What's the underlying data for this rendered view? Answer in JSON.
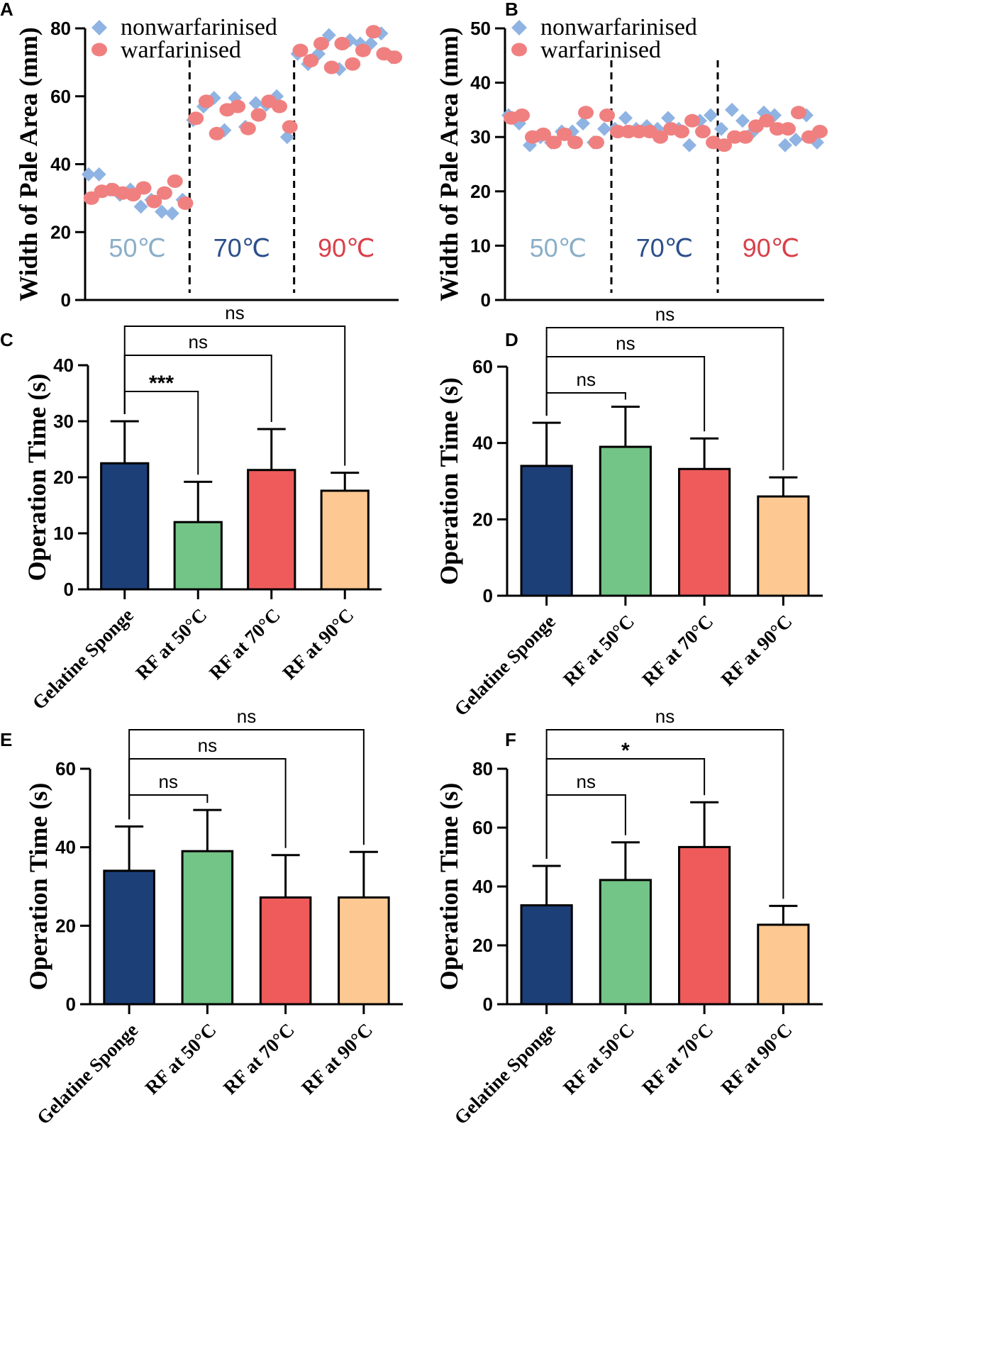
{
  "colors": {
    "nonwarfarinised": "#8fb4e3",
    "warfarinised": "#f08080",
    "temp_50": "#8aaec8",
    "temp_70": "#2c4f8c",
    "temp_90": "#d9404a",
    "bars": [
      "#1c3f78",
      "#73c487",
      "#ef5b5b",
      "#fdc891"
    ]
  },
  "chart_data": [
    {
      "panel": "A",
      "type": "scatter",
      "ylabel": "Width of Pale Area (mm)",
      "ylim": [
        0,
        80
      ],
      "yticks": [
        "0",
        "20",
        "40",
        "60",
        "80"
      ],
      "xrange": [
        0,
        45
      ],
      "legend": [
        "nonwarfarinised",
        "warfarinised"
      ],
      "section_labels": [
        "50℃",
        "70℃",
        "90℃"
      ],
      "dividers_x": [
        15,
        30
      ],
      "series": [
        {
          "name": "nonwarfarinised",
          "marker": "diamond",
          "x": [
            0.5,
            2,
            3.5,
            5,
            6.5,
            8,
            9.5,
            11,
            12.5,
            14,
            15.5,
            17,
            18.5,
            20,
            21.5,
            23,
            24.5,
            26,
            27.5,
            29,
            30.5,
            32,
            33.5,
            35,
            36.5,
            38,
            39.5,
            41,
            42.5,
            44
          ],
          "y": [
            37,
            37,
            32.5,
            31,
            32.5,
            27.5,
            29.5,
            26,
            25.5,
            29.5,
            53,
            57,
            59.5,
            50,
            59.5,
            51,
            58,
            57.5,
            60,
            48,
            72.5,
            69.5,
            72.5,
            78,
            68,
            76.5,
            75.5,
            75.5,
            78.5,
            71.5
          ]
        },
        {
          "name": "warfarinised",
          "marker": "circle",
          "x": [
            0.9,
            2.4,
            3.9,
            5.4,
            6.9,
            8.4,
            9.9,
            11.4,
            12.9,
            14.4,
            15.9,
            17.4,
            18.9,
            20.4,
            21.9,
            23.4,
            24.9,
            26.4,
            27.9,
            29.4,
            30.9,
            32.4,
            33.9,
            35.4,
            36.9,
            38.4,
            39.9,
            41.4,
            42.9,
            44.4
          ],
          "y": [
            30,
            32,
            32.5,
            31.5,
            31,
            33,
            29,
            31.5,
            35,
            28.5,
            53.5,
            58.5,
            49,
            56,
            57,
            50.5,
            54.5,
            58.5,
            57,
            51,
            73.5,
            70.5,
            75.5,
            68.5,
            75.5,
            69.5,
            73.5,
            79,
            72.5,
            71.5
          ]
        }
      ]
    },
    {
      "panel": "B",
      "type": "scatter",
      "ylabel": "Width of Pale Area (mm)",
      "ylim": [
        0,
        50
      ],
      "yticks": [
        "0",
        "10",
        "20",
        "30",
        "40",
        "50"
      ],
      "xrange": [
        0,
        45
      ],
      "legend": [
        "nonwarfarinised",
        "warfarinised"
      ],
      "section_labels": [
        "50℃",
        "70℃",
        "90℃"
      ],
      "dividers_x": [
        15,
        30
      ],
      "series": [
        {
          "name": "nonwarfarinised",
          "marker": "diamond",
          "x": [
            0.5,
            2,
            3.5,
            5,
            6.5,
            8,
            9.5,
            11,
            12.5,
            14,
            15.5,
            17,
            18.5,
            20,
            21.5,
            23,
            24.5,
            26,
            27.5,
            29,
            30.5,
            32,
            33.5,
            35,
            36.5,
            38,
            39.5,
            41,
            42.5,
            44
          ],
          "y": [
            34,
            32.5,
            28.5,
            30,
            29,
            31,
            31,
            32.5,
            29,
            31.5,
            31.5,
            33.5,
            31.5,
            32,
            31.5,
            33.5,
            31.5,
            28.5,
            33,
            34,
            31.5,
            35,
            33,
            31,
            34.5,
            34,
            28.5,
            29.5,
            34,
            29
          ]
        },
        {
          "name": "warfarinised",
          "marker": "circle",
          "x": [
            0.9,
            2.4,
            3.9,
            5.4,
            6.9,
            8.4,
            9.9,
            11.4,
            12.9,
            14.4,
            15.9,
            17.4,
            18.9,
            20.4,
            21.9,
            23.4,
            24.9,
            26.4,
            27.9,
            29.4,
            30.9,
            32.4,
            33.9,
            35.4,
            36.9,
            38.4,
            39.9,
            41.4,
            42.9,
            44.4
          ],
          "y": [
            33.5,
            34,
            30,
            30.5,
            29,
            30.5,
            29,
            34.5,
            29,
            34,
            31,
            31,
            31,
            31,
            30,
            31.5,
            31,
            33,
            31,
            29,
            28.5,
            30,
            30,
            32,
            33,
            31.5,
            31.5,
            34.5,
            30,
            31
          ]
        }
      ]
    },
    {
      "panel": "C",
      "type": "bar",
      "ylabel": "Operation Time (s)",
      "ylim": [
        0,
        40
      ],
      "yticks": [
        "0",
        "10",
        "20",
        "30",
        "40"
      ],
      "categories": [
        "Gelatine Sponge",
        "RF at 50°C",
        "RF at 70°C",
        "RF at 90°C"
      ],
      "values": [
        22.5,
        12,
        21.3,
        17.6
      ],
      "errors": [
        7.5,
        7.2,
        7.3,
        3.2
      ],
      "brackets": [
        {
          "from": 0,
          "to": 1,
          "label": "***"
        },
        {
          "from": 0,
          "to": 2,
          "label": "ns"
        },
        {
          "from": 0,
          "to": 3,
          "label": "ns"
        }
      ]
    },
    {
      "panel": "D",
      "type": "bar",
      "ylabel": "Operation Time (s)",
      "ylim": [
        0,
        60
      ],
      "yticks": [
        "0",
        "20",
        "40",
        "60"
      ],
      "categories": [
        "Gelatine Sponge",
        "RF at 50°C",
        "RF at 70°C",
        "RF at 90°C"
      ],
      "values": [
        34,
        39,
        33.2,
        26
      ],
      "errors": [
        11.3,
        10.5,
        8,
        5
      ],
      "brackets": [
        {
          "from": 0,
          "to": 1,
          "label": "ns"
        },
        {
          "from": 0,
          "to": 2,
          "label": "ns"
        },
        {
          "from": 0,
          "to": 3,
          "label": "ns"
        }
      ]
    },
    {
      "panel": "E",
      "type": "bar",
      "ylabel": "Operation Time (s)",
      "ylim": [
        0,
        60
      ],
      "yticks": [
        "0",
        "20",
        "40",
        "60"
      ],
      "categories": [
        "Gelatine Sponge",
        "RF at 50°C",
        "RF at 70°C",
        "RF at 90°C"
      ],
      "values": [
        34,
        39,
        27.2,
        27.2
      ],
      "errors": [
        11.3,
        10.5,
        10.8,
        11.6
      ],
      "brackets": [
        {
          "from": 0,
          "to": 1,
          "label": "ns"
        },
        {
          "from": 0,
          "to": 2,
          "label": "ns"
        },
        {
          "from": 0,
          "to": 3,
          "label": "ns"
        }
      ]
    },
    {
      "panel": "F",
      "type": "bar",
      "ylabel": "Operation Time (s)",
      "ylim": [
        0,
        80
      ],
      "yticks": [
        "0",
        "20",
        "40",
        "60",
        "80"
      ],
      "categories": [
        "Gelatine Sponge",
        "RF at 50°C",
        "RF at 70°C",
        "RF at 90°C"
      ],
      "values": [
        33.6,
        42.2,
        53.4,
        27
      ],
      "errors": [
        13.4,
        12.8,
        15.2,
        6.4
      ],
      "brackets": [
        {
          "from": 0,
          "to": 1,
          "label": "ns"
        },
        {
          "from": 0,
          "to": 2,
          "label": "*"
        },
        {
          "from": 0,
          "to": 3,
          "label": "ns"
        }
      ]
    }
  ]
}
